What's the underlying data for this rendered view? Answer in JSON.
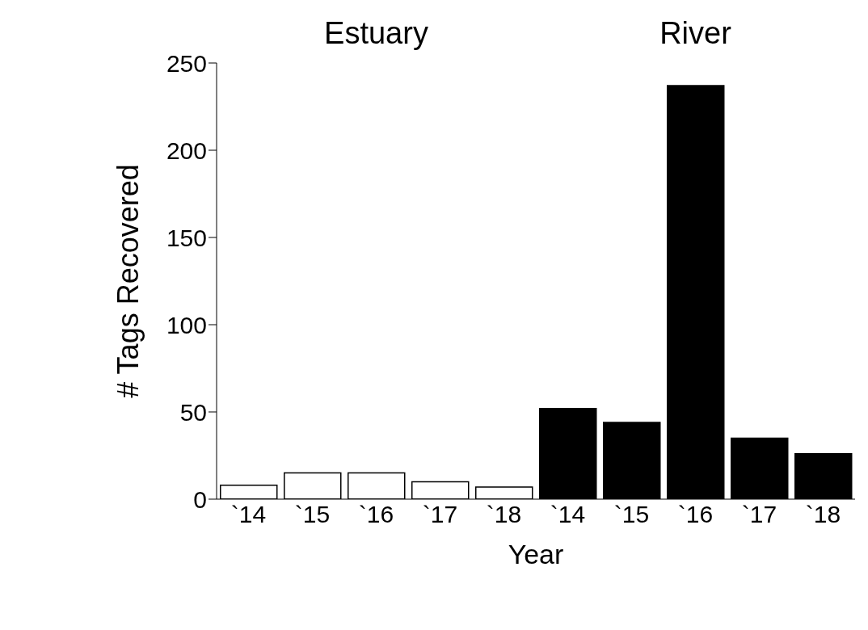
{
  "chart_data": {
    "type": "bar",
    "ylabel": "# Tags Recovered",
    "xlabel": "Year",
    "categories": [
      "`14",
      "`15",
      "`16",
      "`17",
      "`18",
      "`14",
      "`15",
      "`16",
      "`17",
      "`18"
    ],
    "values": [
      8,
      15,
      15,
      10,
      7,
      52,
      44,
      237,
      35,
      26
    ],
    "colors": [
      "#ffffff",
      "#ffffff",
      "#ffffff",
      "#ffffff",
      "#ffffff",
      "#000000",
      "#000000",
      "#000000",
      "#000000",
      "#000000"
    ],
    "annotations": [
      "Estuary",
      "River"
    ],
    "ylim": [
      0,
      250
    ],
    "yticks": [
      0,
      50,
      100,
      150,
      200,
      250
    ],
    "grid": false,
    "legend": false
  }
}
